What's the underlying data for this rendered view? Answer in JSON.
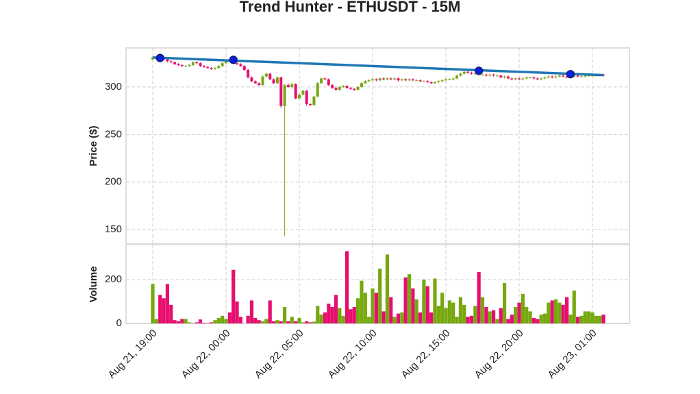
{
  "chart_data": {
    "type": "candlestick",
    "title": "Trend Hunter - ETHUSDT - 15M",
    "ylabel": "Price ($)",
    "volume_ylabel": "Volume",
    "grid": true,
    "up_color": "#76a80f",
    "down_color": "#e60e6e",
    "x": [
      "Aug 21 19:00",
      "Aug 21 19:15",
      "Aug 21 19:30",
      "Aug 21 19:45",
      "Aug 21 20:00",
      "Aug 21 20:15",
      "Aug 21 20:30",
      "Aug 21 20:45",
      "Aug 21 21:00",
      "Aug 21 21:15",
      "Aug 21 21:30",
      "Aug 21 21:45",
      "Aug 21 22:00",
      "Aug 21 22:15",
      "Aug 21 22:30",
      "Aug 21 22:45",
      "Aug 21 23:00",
      "Aug 21 23:15",
      "Aug 21 23:30",
      "Aug 21 23:45",
      "Aug 22 00:00",
      "Aug 22 00:15",
      "Aug 22 00:30",
      "Aug 22 00:45",
      "Aug 22 01:00",
      "Aug 22 01:15",
      "Aug 22 01:30",
      "Aug 22 01:45",
      "Aug 22 02:00",
      "Aug 22 02:15",
      "Aug 22 02:30",
      "Aug 22 02:45",
      "Aug 22 03:00",
      "Aug 22 03:15",
      "Aug 22 03:30",
      "Aug 22 03:45",
      "Aug 22 04:00",
      "Aug 22 04:15",
      "Aug 22 04:30",
      "Aug 22 04:45",
      "Aug 22 05:00",
      "Aug 22 05:15",
      "Aug 22 05:30",
      "Aug 22 05:45",
      "Aug 22 06:00",
      "Aug 22 06:15",
      "Aug 22 06:30",
      "Aug 22 06:45",
      "Aug 22 07:00",
      "Aug 22 07:15",
      "Aug 22 07:30",
      "Aug 22 07:45",
      "Aug 22 08:00",
      "Aug 22 08:15",
      "Aug 22 08:30",
      "Aug 22 08:45",
      "Aug 22 09:00",
      "Aug 22 09:15",
      "Aug 22 09:30",
      "Aug 22 09:45",
      "Aug 22 10:00",
      "Aug 22 10:15",
      "Aug 22 10:30",
      "Aug 22 10:45",
      "Aug 22 11:00",
      "Aug 22 11:15",
      "Aug 22 11:30",
      "Aug 22 11:45",
      "Aug 22 12:00",
      "Aug 22 12:15",
      "Aug 22 12:30",
      "Aug 22 12:45",
      "Aug 22 13:00",
      "Aug 22 13:15",
      "Aug 22 13:30",
      "Aug 22 13:45",
      "Aug 22 14:00",
      "Aug 22 14:15",
      "Aug 22 14:30",
      "Aug 22 14:45",
      "Aug 22 15:00",
      "Aug 22 15:15",
      "Aug 22 15:30",
      "Aug 22 15:45",
      "Aug 22 16:00",
      "Aug 22 16:15",
      "Aug 22 16:30",
      "Aug 22 16:45",
      "Aug 22 17:00",
      "Aug 22 17:15",
      "Aug 22 17:30",
      "Aug 22 17:45",
      "Aug 22 18:00",
      "Aug 22 18:15",
      "Aug 22 18:30",
      "Aug 22 18:45",
      "Aug 22 19:00",
      "Aug 22 19:15",
      "Aug 22 19:30",
      "Aug 22 19:45",
      "Aug 22 20:00",
      "Aug 22 20:15",
      "Aug 22 20:30",
      "Aug 22 20:45",
      "Aug 22 21:00",
      "Aug 22 21:15",
      "Aug 22 21:30",
      "Aug 22 21:45",
      "Aug 22 22:00",
      "Aug 22 22:15",
      "Aug 22 22:30",
      "Aug 22 22:45",
      "Aug 22 23:00",
      "Aug 22 23:15",
      "Aug 22 23:30",
      "Aug 22 23:45",
      "Aug 23 00:00",
      "Aug 23 00:15",
      "Aug 23 00:30",
      "Aug 23 00:45",
      "Aug 23 01:00",
      "Aug 23 01:15",
      "Aug 23 01:30",
      "Aug 23 01:45"
    ],
    "open": [
      329,
      331,
      331,
      330,
      329,
      327,
      326,
      324,
      323,
      322,
      322,
      323,
      326,
      325,
      322,
      321,
      320,
      319,
      320,
      322,
      325,
      328,
      327,
      325,
      324,
      322,
      318,
      310,
      306,
      304,
      302,
      311,
      314,
      308,
      304,
      310,
      280,
      302,
      300,
      303,
      288,
      292,
      296,
      282,
      281,
      290,
      304,
      309,
      308,
      302,
      299,
      297,
      300,
      301,
      299,
      298,
      297,
      300,
      304,
      306,
      307,
      308,
      307,
      309,
      308,
      309,
      308,
      309,
      307,
      308,
      307,
      308,
      307,
      307,
      306,
      306,
      305,
      304,
      305,
      306,
      307,
      308,
      308,
      309,
      312,
      314,
      316,
      315,
      314,
      314,
      313,
      313,
      312,
      313,
      312,
      312,
      310,
      311,
      309,
      308,
      309,
      308,
      309,
      310,
      310,
      309,
      308,
      309,
      310,
      311,
      310,
      311,
      312,
      311,
      310,
      311,
      312,
      311,
      311,
      312,
      312,
      312,
      312,
      313
    ],
    "high": [
      332,
      332,
      332,
      331,
      330,
      328,
      327,
      325,
      324,
      323,
      324,
      327,
      327,
      326,
      323,
      322,
      321,
      321,
      323,
      326,
      329,
      329,
      328,
      326,
      325,
      323,
      319,
      311,
      307,
      305,
      312,
      315,
      315,
      309,
      311,
      311,
      303,
      304,
      304,
      304,
      293,
      297,
      297,
      283,
      291,
      305,
      310,
      310,
      309,
      303,
      300,
      301,
      302,
      302,
      300,
      299,
      301,
      305,
      307,
      308,
      309,
      309,
      310,
      310,
      310,
      310,
      310,
      310,
      309,
      309,
      309,
      309,
      308,
      308,
      307,
      307,
      306,
      306,
      307,
      308,
      309,
      309,
      310,
      313,
      315,
      317,
      317,
      316,
      315,
      315,
      314,
      314,
      314,
      314,
      313,
      313,
      312,
      312,
      310,
      310,
      310,
      310,
      311,
      311,
      311,
      310,
      310,
      311,
      312,
      312,
      312,
      313,
      313,
      312,
      312,
      313,
      313,
      312,
      313,
      313,
      313,
      313,
      314,
      314
    ],
    "low": [
      328,
      330,
      329,
      328,
      326,
      325,
      323,
      322,
      321,
      321,
      321,
      322,
      324,
      321,
      320,
      319,
      318,
      318,
      319,
      321,
      324,
      326,
      324,
      323,
      321,
      317,
      309,
      305,
      303,
      301,
      301,
      310,
      307,
      303,
      303,
      278,
      143,
      299,
      298,
      287,
      287,
      291,
      280,
      280,
      280,
      289,
      303,
      307,
      301,
      298,
      296,
      296,
      299,
      298,
      297,
      296,
      296,
      299,
      303,
      305,
      306,
      306,
      306,
      307,
      307,
      307,
      307,
      306,
      306,
      306,
      306,
      306,
      306,
      305,
      305,
      304,
      303,
      303,
      304,
      305,
      306,
      307,
      307,
      308,
      311,
      313,
      314,
      313,
      313,
      312,
      312,
      311,
      311,
      311,
      311,
      309,
      309,
      308,
      307,
      307,
      307,
      307,
      308,
      309,
      308,
      307,
      307,
      308,
      309,
      309,
      309,
      310,
      310,
      309,
      309,
      310,
      310,
      310,
      310,
      311,
      311,
      311,
      311,
      311
    ],
    "close": [
      331,
      331,
      330,
      329,
      327,
      326,
      324,
      323,
      322,
      322,
      323,
      326,
      325,
      322,
      321,
      320,
      319,
      320,
      322,
      325,
      328,
      327,
      325,
      324,
      322,
      318,
      310,
      306,
      304,
      302,
      311,
      314,
      308,
      304,
      310,
      280,
      302,
      300,
      303,
      288,
      292,
      296,
      282,
      281,
      290,
      304,
      309,
      308,
      302,
      299,
      297,
      300,
      301,
      299,
      298,
      297,
      300,
      304,
      306,
      307,
      308,
      307,
      309,
      308,
      309,
      308,
      309,
      307,
      308,
      307,
      308,
      307,
      307,
      306,
      306,
      305,
      304,
      305,
      306,
      307,
      308,
      308,
      309,
      312,
      314,
      316,
      315,
      314,
      314,
      313,
      313,
      312,
      313,
      312,
      312,
      310,
      311,
      309,
      308,
      309,
      308,
      309,
      310,
      310,
      309,
      308,
      309,
      310,
      311,
      310,
      311,
      312,
      311,
      310,
      311,
      312,
      311,
      311,
      312,
      312,
      312,
      312,
      313,
      312
    ],
    "volume": [
      180,
      20,
      130,
      115,
      180,
      85,
      15,
      10,
      20,
      20,
      5,
      2,
      5,
      18,
      3,
      2,
      5,
      15,
      25,
      35,
      20,
      50,
      245,
      100,
      30,
      0,
      35,
      105,
      25,
      15,
      10,
      20,
      105,
      10,
      15,
      10,
      75,
      10,
      30,
      10,
      25,
      5,
      10,
      5,
      8,
      80,
      40,
      50,
      90,
      75,
      130,
      70,
      35,
      330,
      65,
      75,
      115,
      195,
      140,
      30,
      160,
      140,
      250,
      55,
      315,
      120,
      30,
      45,
      50,
      210,
      225,
      160,
      110,
      50,
      200,
      170,
      50,
      205,
      80,
      140,
      70,
      105,
      95,
      30,
      120,
      85,
      30,
      35,
      80,
      235,
      120,
      75,
      55,
      60,
      20,
      70,
      185,
      20,
      40,
      75,
      95,
      135,
      75,
      55,
      25,
      20,
      40,
      45,
      95,
      105,
      110,
      95,
      85,
      120,
      40,
      150,
      30,
      35,
      55,
      55,
      50,
      35,
      35,
      40
    ],
    "ylim": [
      135,
      341
    ],
    "yticks": [
      150,
      200,
      250,
      300
    ],
    "volume_ylim": [
      0,
      360
    ],
    "volume_yticks": [
      0,
      200
    ],
    "xticks": [
      {
        "value": "Aug 21 19:00",
        "label": "Aug 21, 19:00"
      },
      {
        "value": "Aug 22 00:00",
        "label": "Aug 22, 00:00"
      },
      {
        "value": "Aug 22 05:00",
        "label": "Aug 22, 05:00"
      },
      {
        "value": "Aug 22 10:00",
        "label": "Aug 22, 10:00"
      },
      {
        "value": "Aug 22 15:00",
        "label": "Aug 22, 15:00"
      },
      {
        "value": "Aug 22 20:00",
        "label": "Aug 22, 20:00"
      },
      {
        "value": "Aug 23 01:00",
        "label": "Aug 23, 01:00"
      }
    ],
    "trendline": {
      "color": "#1f77b4",
      "x": [
        "Aug 21 19:00",
        "Aug 23 01:45"
      ],
      "values": [
        331,
        312.5
      ]
    },
    "touches": {
      "color": "#0a1fe0",
      "x": [
        "Aug 21 19:30",
        "Aug 22 00:30",
        "Aug 22 17:15",
        "Aug 22 23:30"
      ],
      "values": [
        330.5,
        328.5,
        317,
        313.5
      ]
    }
  }
}
